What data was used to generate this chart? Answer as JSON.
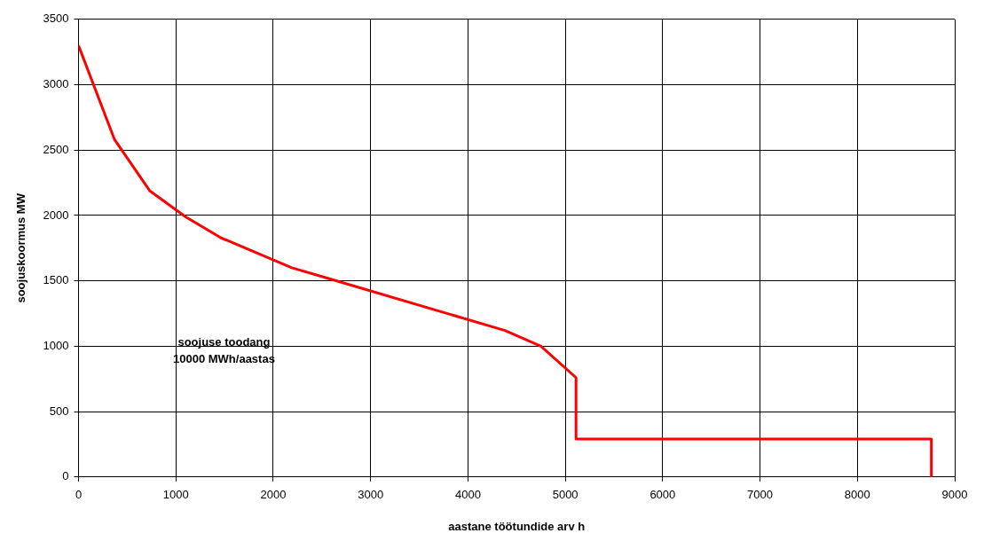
{
  "chart_data": {
    "type": "line",
    "xlabel": "aastane töötundide arv h",
    "ylabel": "soojuskoormus MW",
    "x": [
      0,
      370,
      730,
      1100,
      1460,
      2190,
      2560,
      4380,
      4750,
      5110,
      5110,
      8760,
      8760
    ],
    "series": [
      {
        "color": "#ff0000",
        "values": [
          3300,
          2580,
          2190,
          1990,
          1830,
          1600,
          1520,
          1120,
          1000,
          760,
          290,
          290,
          0
        ]
      }
    ],
    "xlim": [
      0,
      9000
    ],
    "xticks": [
      0,
      1000,
      2000,
      3000,
      4000,
      5000,
      6000,
      7000,
      8000,
      9000
    ],
    "ylim": [
      0,
      3500
    ],
    "yticks": [
      0,
      500,
      1000,
      1500,
      2000,
      2500,
      3000,
      3500
    ],
    "grid": true,
    "legend": false,
    "marker": "none",
    "line_style": "solid",
    "annotations": [
      "soojuse toodang",
      "10000 MWh/aastas"
    ]
  }
}
